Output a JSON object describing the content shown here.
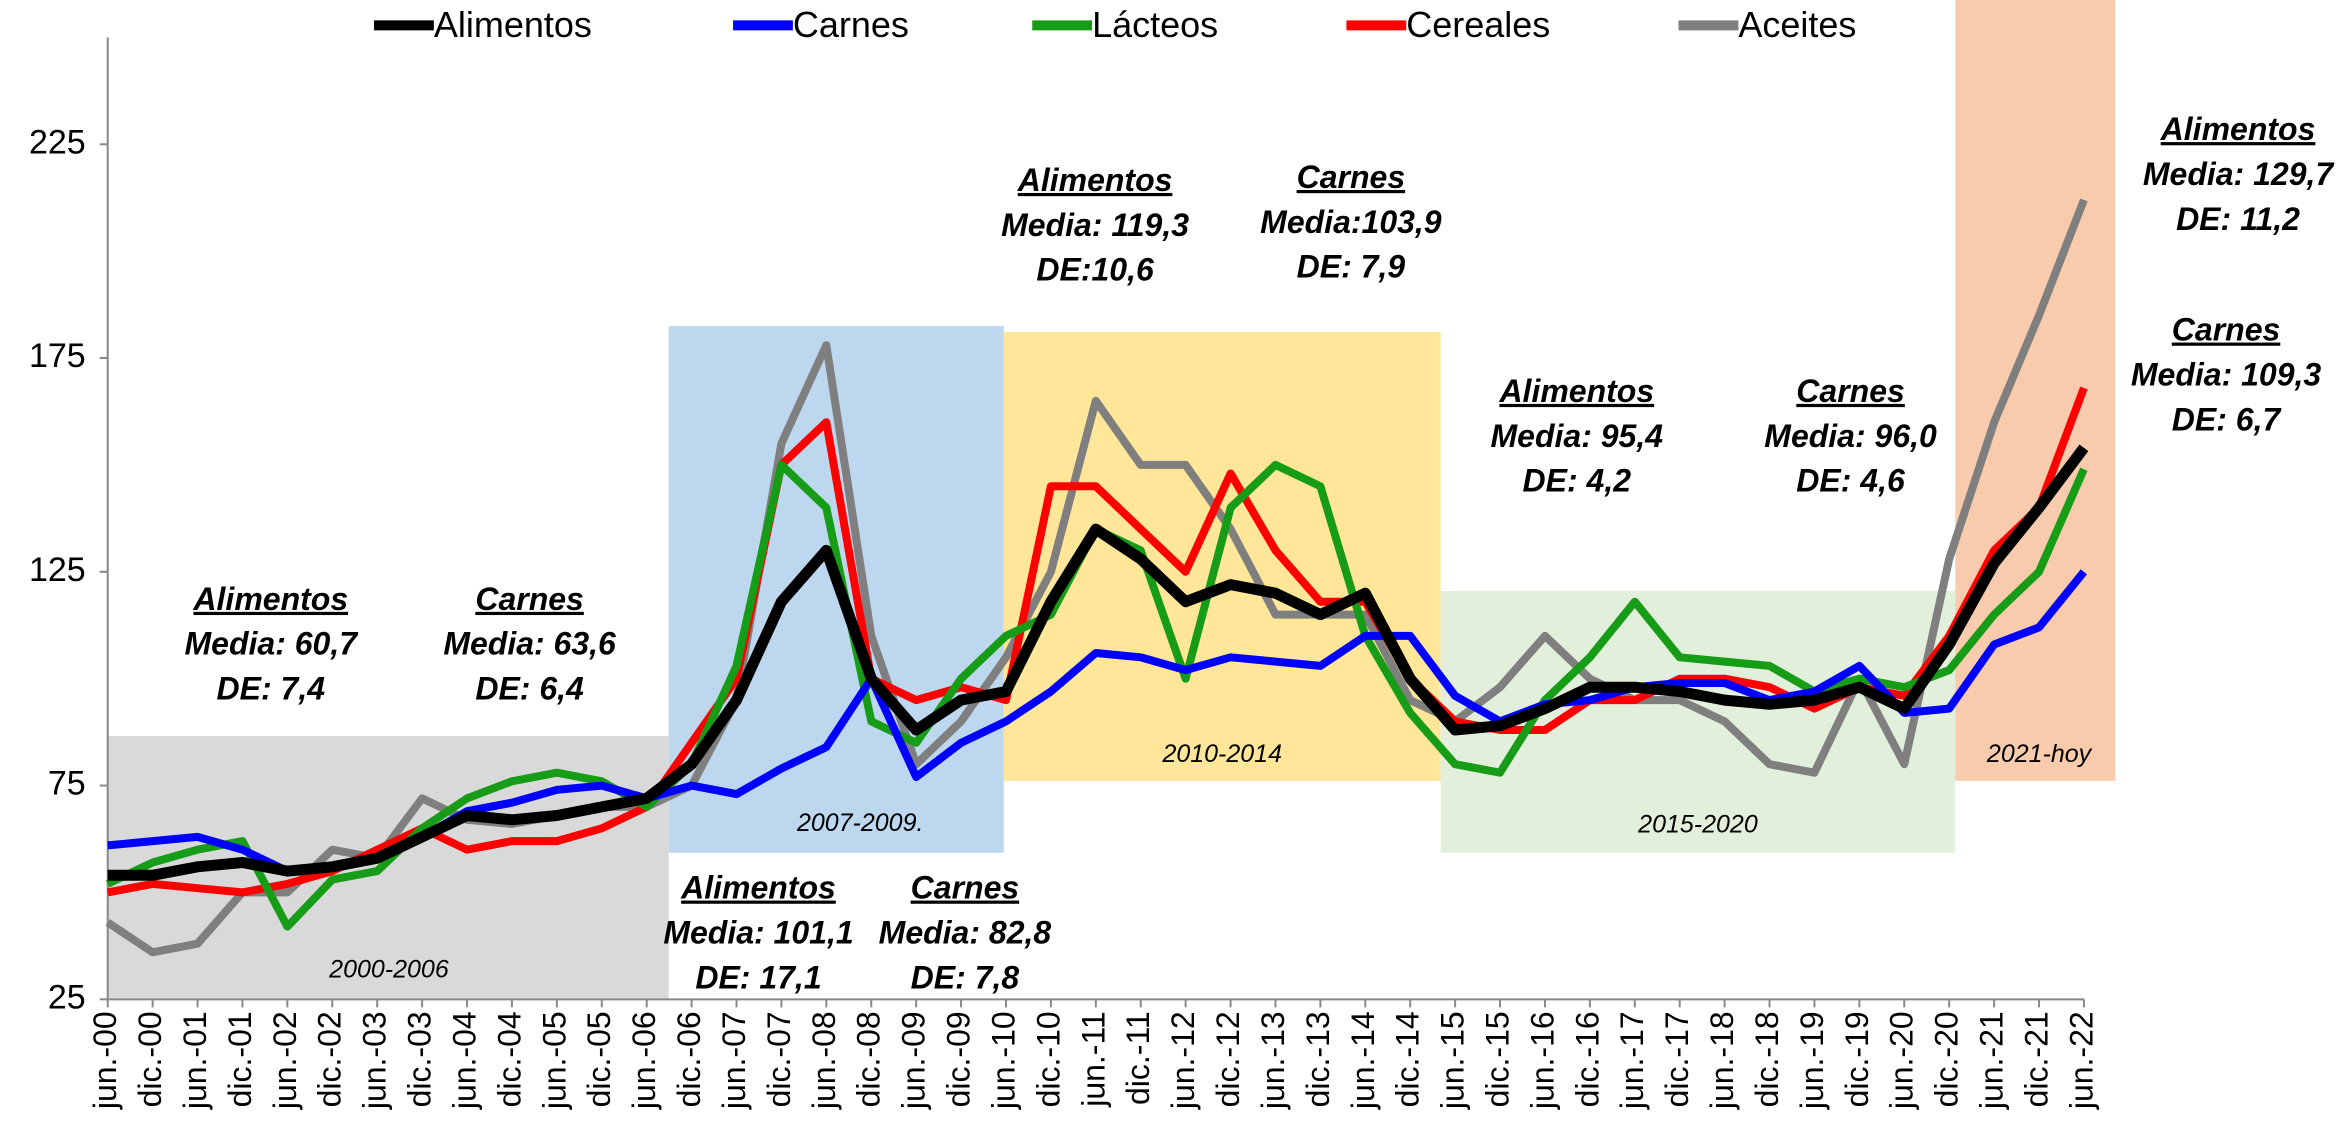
{
  "chart_data": {
    "type": "line",
    "categories": [
      "jun.-00",
      "dic.-00",
      "jun.-01",
      "dic.-01",
      "jun.-02",
      "dic.-02",
      "jun.-03",
      "dic.-03",
      "jun.-04",
      "dic.-04",
      "jun.-05",
      "dic.-05",
      "jun.-06",
      "dic.-06",
      "jun.-07",
      "dic.-07",
      "jun.-08",
      "dic.-08",
      "jun.-09",
      "dic.-09",
      "jun.-10",
      "dic.-10",
      "jun.-11",
      "dic.-11",
      "jun.-12",
      "dic.-12",
      "jun.-13",
      "dic.-13",
      "jun.-14",
      "dic.-14",
      "jun.-15",
      "dic.-15",
      "jun.-16",
      "dic.-16",
      "jun.-17",
      "dic.-17",
      "jun.-18",
      "dic.-18",
      "jun.-19",
      "dic.-19",
      "jun.-20",
      "dic.-20",
      "jun.-21",
      "dic.-21",
      "jun.-22"
    ],
    "series": [
      {
        "name": "Alimentos",
        "color": "#000000",
        "values": [
          54,
          54,
          56,
          57,
          55,
          56,
          58,
          63,
          68,
          67,
          68,
          70,
          72,
          80,
          95,
          118,
          130,
          100,
          88,
          95,
          97,
          118,
          135,
          128,
          118,
          122,
          120,
          115,
          120,
          100,
          88,
          89,
          93,
          98,
          98,
          97,
          95,
          94,
          95,
          98,
          93,
          108,
          127,
          140,
          154
        ]
      },
      {
        "name": "Carnes",
        "color": "#0000ff",
        "values": [
          61,
          62,
          63,
          60,
          55,
          56,
          58,
          63,
          69,
          71,
          74,
          75,
          72,
          75,
          73,
          79,
          84,
          100,
          77,
          85,
          90,
          97,
          106,
          105,
          102,
          105,
          104,
          103,
          110,
          110,
          96,
          90,
          94,
          95,
          98,
          99,
          99,
          95,
          97,
          103,
          92,
          93,
          108,
          112,
          125
        ]
      },
      {
        "name": "Lácteos",
        "color": "#169c16",
        "values": [
          52,
          57,
          60,
          62,
          42,
          53,
          55,
          65,
          72,
          76,
          78,
          76,
          70,
          80,
          103,
          150,
          140,
          90,
          85,
          100,
          110,
          115,
          135,
          130,
          100,
          140,
          150,
          145,
          110,
          92,
          80,
          78,
          95,
          105,
          118,
          105,
          104,
          103,
          97,
          100,
          98,
          102,
          115,
          125,
          149
        ]
      },
      {
        "name": "Cereales",
        "color": "#ff0000",
        "values": [
          50,
          52,
          51,
          50,
          52,
          55,
          60,
          65,
          60,
          62,
          62,
          65,
          70,
          85,
          100,
          150,
          160,
          100,
          95,
          98,
          95,
          145,
          145,
          135,
          125,
          148,
          130,
          118,
          118,
          100,
          90,
          88,
          88,
          95,
          95,
          100,
          100,
          98,
          93,
          98,
          96,
          110,
          130,
          140,
          168
        ]
      },
      {
        "name": "Aceites",
        "color": "#7f7f7f",
        "values": [
          43,
          36,
          38,
          50,
          50,
          60,
          58,
          72,
          67,
          66,
          68,
          70,
          70,
          75,
          95,
          155,
          178,
          110,
          80,
          90,
          105,
          125,
          165,
          150,
          150,
          135,
          115,
          115,
          115,
          95,
          90,
          98,
          110,
          100,
          95,
          95,
          90,
          80,
          78,
          100,
          80,
          128,
          160,
          185,
          212
        ]
      }
    ],
    "ylim": [
      25,
      250
    ],
    "yticks": [
      25,
      75,
      125,
      175,
      225
    ],
    "periods": [
      {
        "label": "2000-2006",
        "color": "#d9d9d9"
      },
      {
        "label": "2007-2009.",
        "color": "#bdd7ee"
      },
      {
        "label": "2010-2014",
        "color": "#ffe699"
      },
      {
        "label": "2015-2020",
        "color": "#e2efda"
      },
      {
        "label": "2021-hoy",
        "color": "#f8cbad"
      }
    ],
    "annotations": [
      [
        "Alimentos",
        "Media: 60,7",
        "DE: 7,4"
      ],
      [
        "Carnes",
        "Media: 63,6",
        "DE: 6,4"
      ],
      [
        "Alimentos",
        "Media: 101,1",
        "DE: 17,1"
      ],
      [
        "Carnes",
        "Media: 82,8",
        "DE: 7,8"
      ],
      [
        "Alimentos",
        "Media: 119,3",
        "DE:10,6"
      ],
      [
        "Carnes",
        "Media:103,9",
        "DE: 7,9"
      ],
      [
        "Alimentos",
        "Media: 95,4",
        "DE: 4,2"
      ],
      [
        "Carnes",
        "Media: 96,0",
        "DE: 4,6"
      ],
      [
        "Alimentos",
        "Media: 129,7",
        "DE: 11,2"
      ],
      [
        "Carnes",
        "Media: 109,3",
        "DE: 6,7"
      ]
    ]
  }
}
